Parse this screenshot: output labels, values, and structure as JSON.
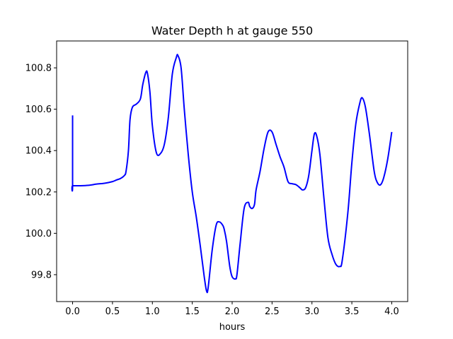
{
  "chart_data": {
    "type": "line",
    "title": "Water Depth h at gauge 550",
    "xlabel": "hours",
    "ylabel": "",
    "xlim": [
      -0.2,
      4.2
    ],
    "ylim": [
      99.67,
      100.93
    ],
    "xticks": [
      0.0,
      0.5,
      1.0,
      1.5,
      2.0,
      2.5,
      3.0,
      3.5,
      4.0
    ],
    "xtick_labels": [
      "0.0",
      "0.5",
      "1.0",
      "1.5",
      "2.0",
      "2.5",
      "3.0",
      "3.5",
      "4.0"
    ],
    "yticks": [
      99.8,
      100.0,
      100.2,
      100.4,
      100.6,
      100.8
    ],
    "ytick_labels": [
      "99.8",
      "100.0",
      "100.2",
      "100.4",
      "100.6",
      "100.8"
    ],
    "grid": false,
    "legend": "none",
    "series": [
      {
        "color": "#0000ff",
        "x": [
          0.0,
          0.0,
          0.0,
          0.1,
          0.2,
          0.3,
          0.4,
          0.5,
          0.55,
          0.6,
          0.65,
          0.67,
          0.7,
          0.72,
          0.75,
          0.8,
          0.85,
          0.88,
          0.92,
          0.94,
          0.97,
          1.0,
          1.05,
          1.1,
          1.15,
          1.2,
          1.25,
          1.3,
          1.32,
          1.36,
          1.4,
          1.45,
          1.5,
          1.55,
          1.6,
          1.65,
          1.68,
          1.7,
          1.75,
          1.8,
          1.84,
          1.88,
          1.9,
          1.93,
          1.97,
          2.0,
          2.04,
          2.06,
          2.1,
          2.15,
          2.2,
          2.22,
          2.25,
          2.28,
          2.3,
          2.35,
          2.4,
          2.45,
          2.5,
          2.55,
          2.6,
          2.65,
          2.7,
          2.75,
          2.8,
          2.85,
          2.88,
          2.92,
          2.96,
          3.0,
          3.03,
          3.06,
          3.1,
          3.15,
          3.2,
          3.25,
          3.3,
          3.35,
          3.38,
          3.45,
          3.5,
          3.55,
          3.6,
          3.63,
          3.67,
          3.72,
          3.78,
          3.82,
          3.86,
          3.9,
          3.95,
          4.0
        ],
        "y": [
          100.57,
          100.23,
          100.23,
          100.23,
          100.232,
          100.238,
          100.242,
          100.25,
          100.258,
          100.265,
          100.28,
          100.3,
          100.4,
          100.55,
          100.61,
          100.625,
          100.65,
          100.72,
          100.78,
          100.77,
          100.68,
          100.52,
          100.39,
          100.385,
          100.43,
          100.56,
          100.77,
          100.85,
          100.86,
          100.8,
          100.6,
          100.38,
          100.2,
          100.08,
          99.94,
          99.79,
          99.72,
          99.74,
          99.92,
          100.04,
          100.055,
          100.04,
          100.02,
          99.96,
          99.84,
          99.79,
          99.78,
          99.8,
          99.95,
          100.12,
          100.15,
          100.13,
          100.12,
          100.14,
          100.21,
          100.3,
          100.41,
          100.49,
          100.49,
          100.43,
          100.37,
          100.32,
          100.25,
          100.24,
          100.235,
          100.22,
          100.21,
          100.22,
          100.28,
          100.4,
          100.48,
          100.47,
          100.38,
          100.17,
          99.98,
          99.9,
          99.85,
          99.84,
          99.87,
          100.1,
          100.34,
          100.53,
          100.63,
          100.655,
          100.61,
          100.48,
          100.3,
          100.245,
          100.235,
          100.27,
          100.36,
          100.49
        ]
      }
    ]
  }
}
